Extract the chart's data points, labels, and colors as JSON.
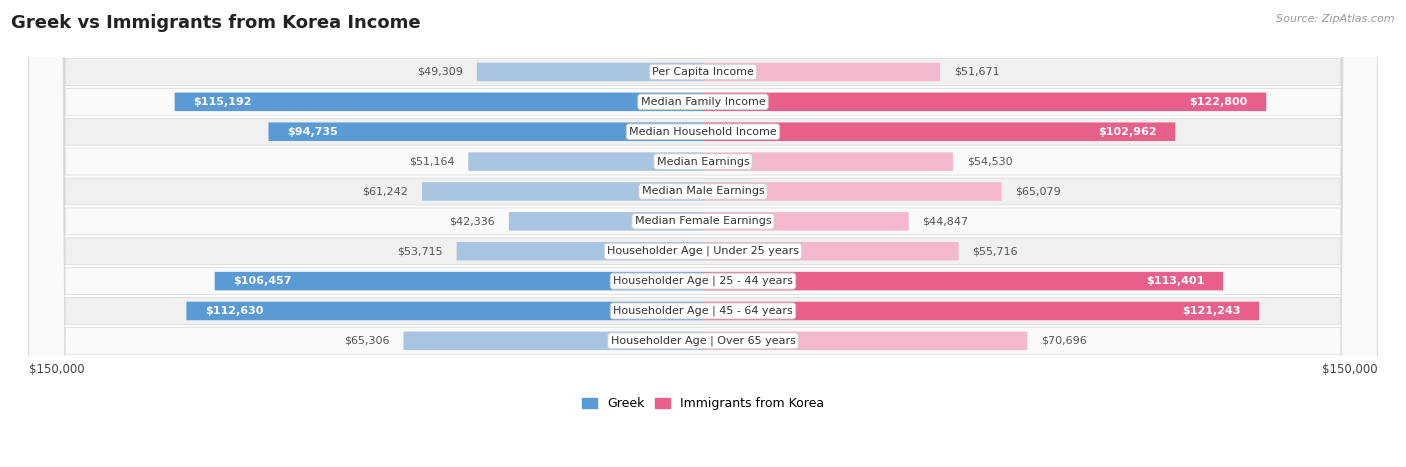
{
  "title": "Greek vs Immigrants from Korea Income",
  "source": "Source: ZipAtlas.com",
  "categories": [
    "Per Capita Income",
    "Median Family Income",
    "Median Household Income",
    "Median Earnings",
    "Median Male Earnings",
    "Median Female Earnings",
    "Householder Age | Under 25 years",
    "Householder Age | 25 - 44 years",
    "Householder Age | 45 - 64 years",
    "Householder Age | Over 65 years"
  ],
  "greek_values": [
    49309,
    115192,
    94735,
    51164,
    61242,
    42336,
    53715,
    106457,
    112630,
    65306
  ],
  "korea_values": [
    51671,
    122800,
    102962,
    54530,
    65079,
    44847,
    55716,
    113401,
    121243,
    70696
  ],
  "greek_labels": [
    "$49,309",
    "$115,192",
    "$94,735",
    "$51,164",
    "$61,242",
    "$42,336",
    "$53,715",
    "$106,457",
    "$112,630",
    "$65,306"
  ],
  "korea_labels": [
    "$51,671",
    "$122,800",
    "$102,962",
    "$54,530",
    "$65,079",
    "$44,847",
    "$55,716",
    "$113,401",
    "$121,243",
    "$70,696"
  ],
  "greek_color_light": "#a8c4e0",
  "greek_color_dark": "#5b9bd5",
  "korea_color_light": "#f4b8ce",
  "korea_color_dark": "#e8608a",
  "max_value": 150000,
  "bg_color": "#ffffff",
  "row_bg_odd": "#f0f0f0",
  "row_bg_even": "#fafafa",
  "row_border": "#d8d8d8",
  "legend_greek": "Greek",
  "legend_korea": "Immigrants from Korea",
  "xlabel_left": "$150,000",
  "xlabel_right": "$150,000",
  "large_threshold": 75000
}
